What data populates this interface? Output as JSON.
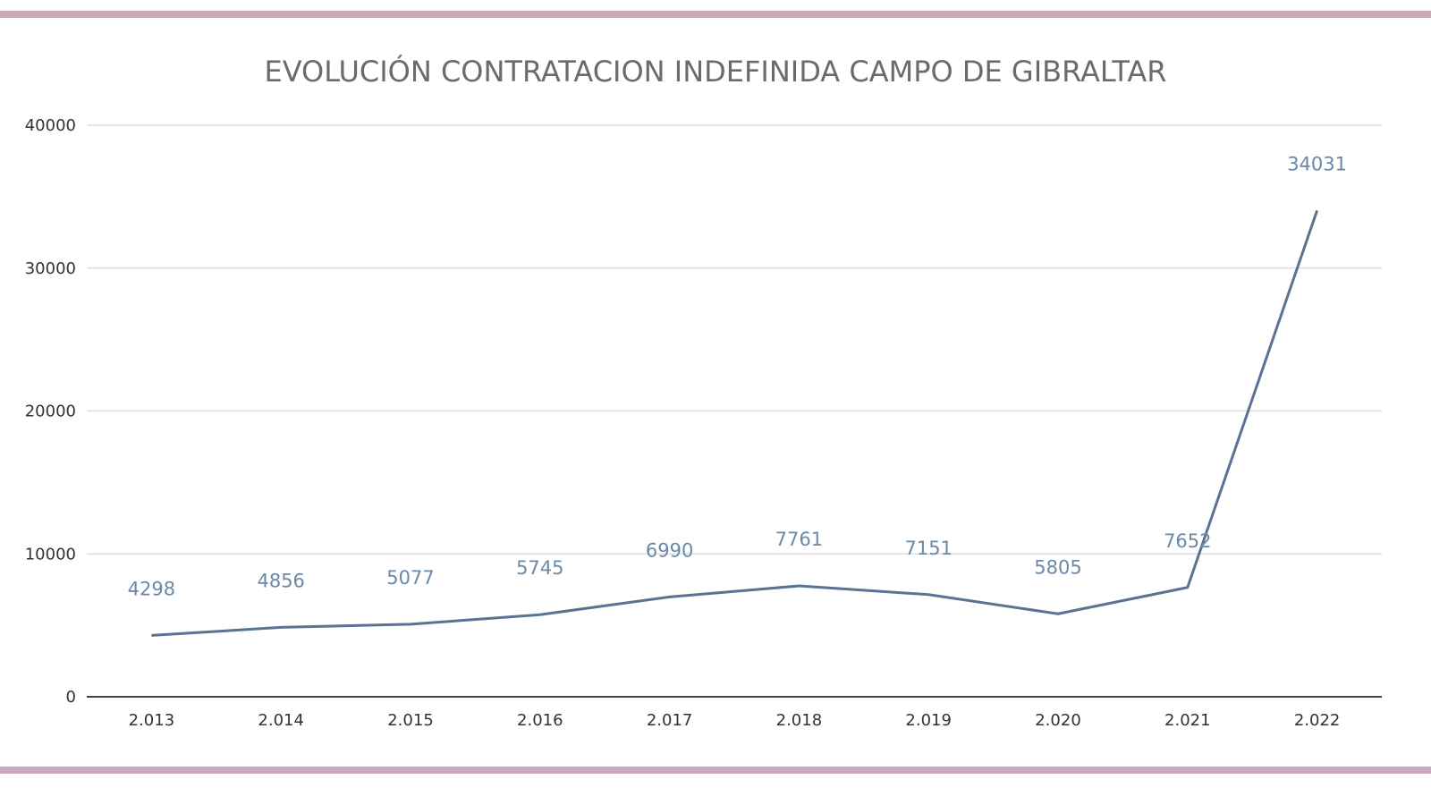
{
  "chart_data": {
    "type": "line",
    "title": "EVOLUCIÓN CONTRATACION INDEFINIDA CAMPO DE GIBRALTAR",
    "categories": [
      "2.013",
      "2.014",
      "2.015",
      "2.016",
      "2.017",
      "2.018",
      "2.019",
      "2.020",
      "2.021",
      "2.022"
    ],
    "series": [
      {
        "values": [
          4298,
          4856,
          5077,
          5745,
          6990,
          7761,
          7151,
          5805,
          7652,
          34031
        ]
      }
    ],
    "yticks": [
      "0",
      "10000",
      "20000",
      "30000",
      "40000"
    ],
    "ylim": [
      0,
      40000
    ],
    "grid": true,
    "data_labels": true,
    "colors": {
      "line": "#5b7393",
      "labels": "#6a88a8",
      "border": "#c9abbd",
      "grid": "#dddddd"
    }
  }
}
